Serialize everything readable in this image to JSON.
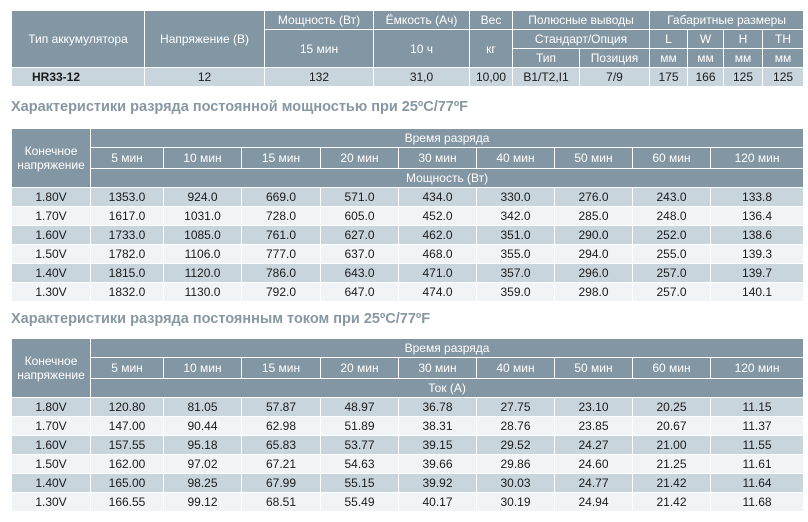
{
  "spec": {
    "headers": {
      "type": "Тип аккумулятора",
      "voltage": "Напряжение (В)",
      "power": "Мощность (Вт)",
      "power_sub": "15 мин",
      "capacity": "Ёмкость (Ач)",
      "capacity_sub": "10 ч",
      "weight": "Вес",
      "weight_sub": "кг",
      "terminals": "Полюсные выводы",
      "terminals_sub": "Стандарт/Опция",
      "terminal_type": "Тип",
      "terminal_position": "Позиция",
      "dimensions": "Габаритные размеры",
      "L": "L",
      "W": "W",
      "H": "H",
      "TH": "TH",
      "mm": "мм"
    },
    "row": {
      "type": "HR33-12",
      "voltage": "12",
      "power": "132",
      "capacity": "31,0",
      "weight": "10,00",
      "terminal_type": "B1/T2,I1",
      "terminal_position": "7/9",
      "L": "175",
      "W": "166",
      "H": "125",
      "TH": "125"
    }
  },
  "power_table": {
    "title": "Характеристики разряда постоянной мощностью при 25ºC/77ºF",
    "end_voltage_header": "Конечное напряжение",
    "time_header": "Время разряда",
    "unit_header": "Мощность (Вт)",
    "times": [
      "5 мин",
      "10 мин",
      "15 мин",
      "20 мин",
      "30 мин",
      "40 мин",
      "50 мин",
      "60 мин",
      "120 мин"
    ],
    "rows": [
      {
        "voltage": "1.80V",
        "values": [
          "1353.0",
          "924.0",
          "669.0",
          "571.0",
          "434.0",
          "330.0",
          "276.0",
          "243.0",
          "133.8"
        ]
      },
      {
        "voltage": "1.70V",
        "values": [
          "1617.0",
          "1031.0",
          "728.0",
          "605.0",
          "452.0",
          "342.0",
          "285.0",
          "248.0",
          "136.4"
        ]
      },
      {
        "voltage": "1.60V",
        "values": [
          "1733.0",
          "1085.0",
          "761.0",
          "627.0",
          "462.0",
          "351.0",
          "290.0",
          "252.0",
          "138.6"
        ]
      },
      {
        "voltage": "1.50V",
        "values": [
          "1782.0",
          "1106.0",
          "777.0",
          "637.0",
          "468.0",
          "355.0",
          "294.0",
          "255.0",
          "139.3"
        ]
      },
      {
        "voltage": "1.40V",
        "values": [
          "1815.0",
          "1120.0",
          "786.0",
          "643.0",
          "471.0",
          "357.0",
          "296.0",
          "257.0",
          "139.7"
        ]
      },
      {
        "voltage": "1.30V",
        "values": [
          "1832.0",
          "1130.0",
          "792.0",
          "647.0",
          "474.0",
          "359.0",
          "298.0",
          "257.0",
          "140.1"
        ]
      }
    ]
  },
  "current_table": {
    "title": "Характеристики разряда постоянным током при 25ºC/77ºF",
    "end_voltage_header": "Конечное напряжение",
    "time_header": "Время разряда",
    "unit_header": "Ток (А)",
    "times": [
      "5 мин",
      "10 мин",
      "15 мин",
      "20 мин",
      "30 мин",
      "40 мин",
      "50 мин",
      "60 мин",
      "120 мин"
    ],
    "rows": [
      {
        "voltage": "1.80V",
        "values": [
          "120.80",
          "81.05",
          "57.87",
          "48.97",
          "36.78",
          "27.75",
          "23.10",
          "20.25",
          "11.15"
        ]
      },
      {
        "voltage": "1.70V",
        "values": [
          "147.00",
          "90.44",
          "62.98",
          "51.89",
          "38.31",
          "28.76",
          "23.85",
          "20.67",
          "11.37"
        ]
      },
      {
        "voltage": "1.60V",
        "values": [
          "157.55",
          "95.18",
          "65.83",
          "53.77",
          "39.15",
          "29.52",
          "24.27",
          "21.00",
          "11.55"
        ]
      },
      {
        "voltage": "1.50V",
        "values": [
          "162.00",
          "97.02",
          "67.21",
          "54.63",
          "39.66",
          "29.86",
          "24.60",
          "21.25",
          "11.61"
        ]
      },
      {
        "voltage": "1.40V",
        "values": [
          "165.00",
          "98.25",
          "67.99",
          "55.15",
          "39.92",
          "30.03",
          "24.77",
          "21.42",
          "11.64"
        ]
      },
      {
        "voltage": "1.30V",
        "values": [
          "166.55",
          "99.12",
          "68.51",
          "55.49",
          "40.17",
          "30.19",
          "24.94",
          "21.42",
          "11.68"
        ]
      }
    ]
  },
  "colors": {
    "header_bg": "#8396a3",
    "row_odd": "#c9d5dc",
    "row_even": "#f1f4f6",
    "title": "#8797a3"
  }
}
